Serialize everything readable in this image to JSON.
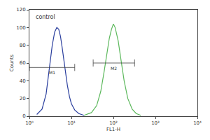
{
  "chart_data": {
    "type": "line",
    "log": "x",
    "xlabel": "FL1-H",
    "ylabel": "Counts",
    "xlim": [
      1,
      10000
    ],
    "xticks": [
      {
        "value": 1,
        "label": "10⁰"
      },
      {
        "value": 10,
        "label": "10¹"
      },
      {
        "value": 100,
        "label": "10²"
      },
      {
        "value": 1000,
        "label": "10³"
      },
      {
        "value": 10000,
        "label": "10⁴"
      }
    ],
    "ylim": [
      0,
      120
    ],
    "yticks": [
      0,
      20,
      40,
      60,
      80,
      100,
      120
    ],
    "grid": false,
    "series": [
      {
        "color": "#2b3f9e",
        "x": [
          1.5,
          2,
          2.5,
          3,
          3.5,
          4,
          4.5,
          5,
          5.5,
          6,
          7,
          8,
          9,
          10,
          12,
          15,
          20
        ],
        "values": [
          2,
          8,
          25,
          55,
          80,
          95,
          100,
          98,
          90,
          78,
          55,
          35,
          22,
          14,
          7,
          3,
          1
        ]
      },
      {
        "color": "#5cb85c",
        "x": [
          20,
          30,
          40,
          50,
          60,
          70,
          80,
          90,
          100,
          110,
          130,
          150,
          180,
          220,
          280,
          350,
          450
        ],
        "values": [
          1,
          4,
          12,
          28,
          50,
          72,
          88,
          98,
          104,
          100,
          85,
          65,
          40,
          20,
          8,
          3,
          1
        ]
      }
    ],
    "markers": [
      {
        "label": "M1",
        "x": [
          1,
          12
        ],
        "y": 55
      },
      {
        "label": "M2",
        "x": [
          33,
          320
        ],
        "y": 60
      }
    ],
    "annotations": [
      {
        "text": "control",
        "x": 1.3,
        "y": 112
      }
    ]
  }
}
